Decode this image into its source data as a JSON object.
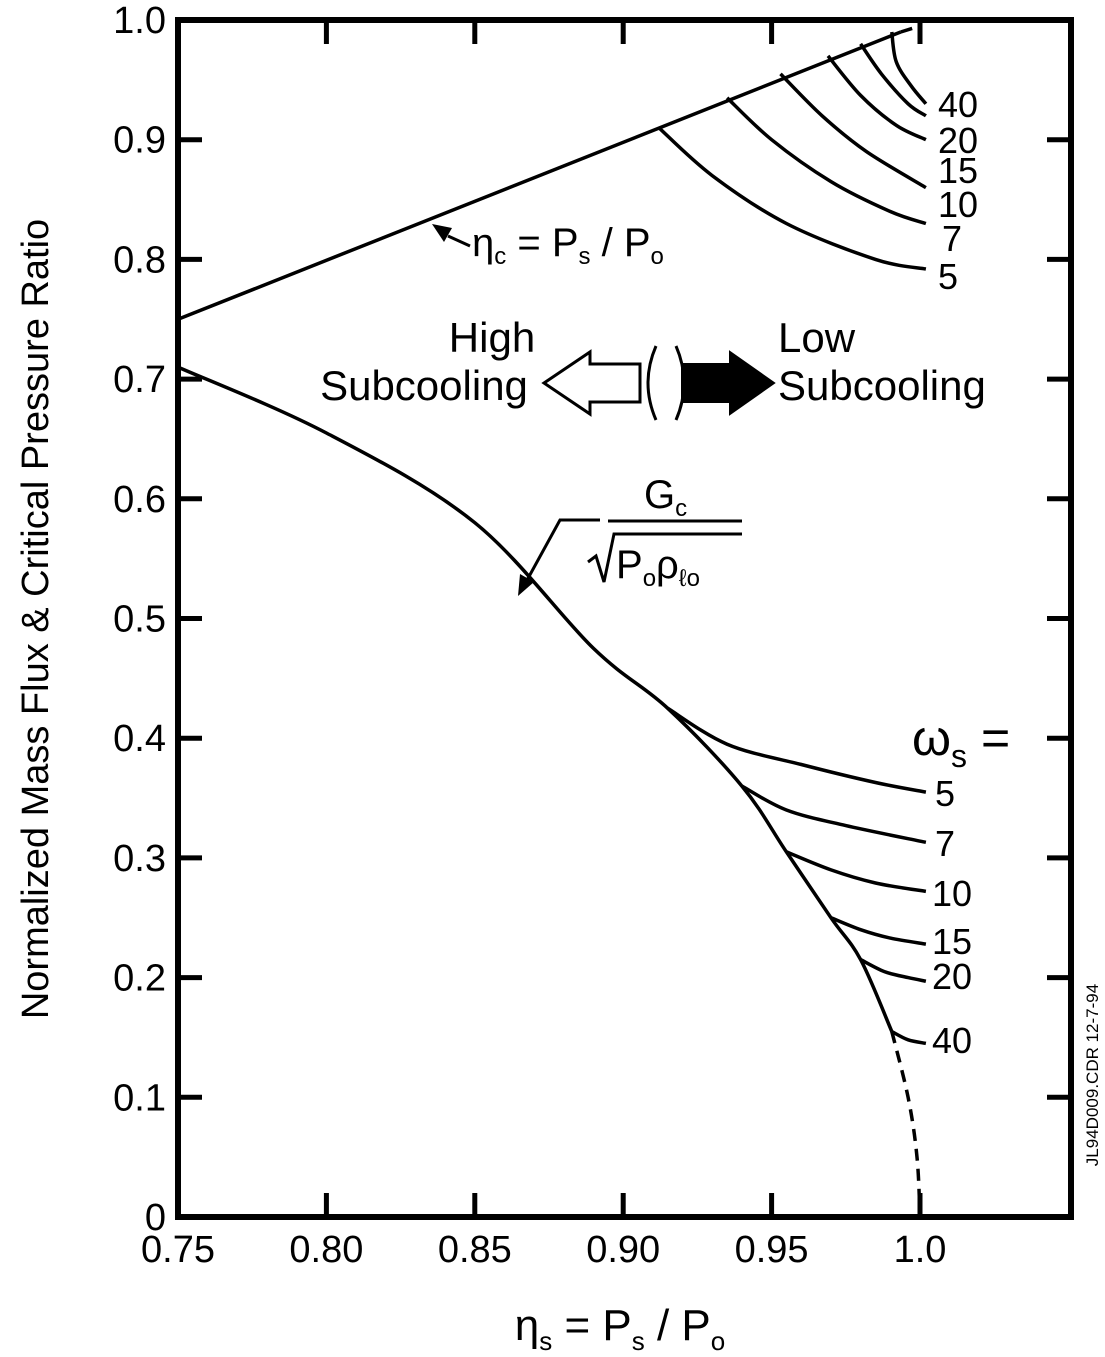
{
  "chart_data": {
    "type": "line",
    "xlabel": {
      "base": "η",
      "sub": "s",
      "rest": " = P",
      "sub2": "s",
      "rest2": " / P",
      "sub3": "o"
    },
    "ylabel": "Normalized Mass Flux & Critical Pressure Ratio",
    "xlim": [
      0.75,
      1.0
    ],
    "ylim": [
      0,
      1.0
    ],
    "x_ticks": [
      {
        "v": 0.75,
        "label": "0.75"
      },
      {
        "v": 0.8,
        "label": "0.80"
      },
      {
        "v": 0.85,
        "label": "0.85"
      },
      {
        "v": 0.9,
        "label": "0.90"
      },
      {
        "v": 0.95,
        "label": "0.95"
      },
      {
        "v": 1.0,
        "label": "1.0"
      }
    ],
    "y_ticks": [
      {
        "v": 0,
        "label": "0"
      },
      {
        "v": 0.1,
        "label": "0.1"
      },
      {
        "v": 0.2,
        "label": "0.2"
      },
      {
        "v": 0.3,
        "label": "0.3"
      },
      {
        "v": 0.4,
        "label": "0.4"
      },
      {
        "v": 0.5,
        "label": "0.5"
      },
      {
        "v": 0.6,
        "label": "0.6"
      },
      {
        "v": 0.7,
        "label": "0.7"
      },
      {
        "v": 0.8,
        "label": "0.8"
      },
      {
        "v": 0.9,
        "label": "0.9"
      },
      {
        "v": 1.0,
        "label": "1.0"
      }
    ],
    "grid": false,
    "series": [
      {
        "id": "eta_c_line",
        "style": "solid",
        "points": [
          [
            0.75,
            0.75
          ],
          [
            0.9935,
            0.99
          ]
        ]
      },
      {
        "id": "eta_c_line_dashed",
        "style": "dashed",
        "points": [
          [
            0.9935,
            0.99
          ],
          [
            1.0,
            0.995
          ]
        ]
      },
      {
        "id": "mass_flux_envelope",
        "style": "solid",
        "points": [
          [
            0.75,
            0.71
          ],
          [
            0.8,
            0.655
          ],
          [
            0.85,
            0.58
          ],
          [
            0.89,
            0.475
          ],
          [
            0.915,
            0.425
          ],
          [
            0.94,
            0.36
          ],
          [
            0.955,
            0.305
          ],
          [
            0.97,
            0.25
          ],
          [
            0.98,
            0.215
          ],
          [
            0.9905,
            0.155
          ]
        ]
      },
      {
        "id": "mass_flux_envelope_dashed",
        "style": "dashed",
        "points": [
          [
            0.9905,
            0.155
          ],
          [
            0.996,
            0.1
          ],
          [
            0.999,
            0.05
          ],
          [
            1.0,
            0.0
          ]
        ]
      },
      {
        "id": "upper_w5",
        "style": "solid",
        "points": [
          [
            0.912,
            0.91
          ],
          [
            0.93,
            0.87
          ],
          [
            0.955,
            0.83
          ],
          [
            0.985,
            0.8
          ],
          [
            1.002,
            0.792
          ]
        ]
      },
      {
        "id": "upper_w7",
        "style": "solid",
        "points": [
          [
            0.935,
            0.935
          ],
          [
            0.95,
            0.9
          ],
          [
            0.97,
            0.865
          ],
          [
            0.99,
            0.84
          ],
          [
            1.002,
            0.83
          ]
        ]
      },
      {
        "id": "upper_w10",
        "style": "solid",
        "points": [
          [
            0.953,
            0.955
          ],
          [
            0.967,
            0.92
          ],
          [
            0.982,
            0.89
          ],
          [
            1.002,
            0.86
          ]
        ]
      },
      {
        "id": "upper_w15",
        "style": "solid",
        "points": [
          [
            0.969,
            0.97
          ],
          [
            0.98,
            0.937
          ],
          [
            0.992,
            0.912
          ],
          [
            1.002,
            0.9
          ]
        ]
      },
      {
        "id": "upper_w20",
        "style": "solid",
        "points": [
          [
            0.98,
            0.98
          ],
          [
            0.987,
            0.955
          ],
          [
            0.996,
            0.93
          ],
          [
            1.002,
            0.92
          ]
        ]
      },
      {
        "id": "upper_w40",
        "style": "solid",
        "points": [
          [
            0.9905,
            0.99
          ],
          [
            0.992,
            0.965
          ],
          [
            0.997,
            0.945
          ],
          [
            1.002,
            0.93
          ]
        ]
      },
      {
        "id": "lower_w5",
        "style": "solid",
        "points": [
          [
            0.915,
            0.425
          ],
          [
            0.935,
            0.395
          ],
          [
            0.96,
            0.378
          ],
          [
            0.985,
            0.363
          ],
          [
            1.002,
            0.355
          ]
        ]
      },
      {
        "id": "lower_w7",
        "style": "solid",
        "points": [
          [
            0.94,
            0.36
          ],
          [
            0.955,
            0.34
          ],
          [
            0.975,
            0.327
          ],
          [
            1.002,
            0.313
          ]
        ]
      },
      {
        "id": "lower_w10",
        "style": "solid",
        "points": [
          [
            0.955,
            0.305
          ],
          [
            0.97,
            0.29
          ],
          [
            0.985,
            0.279
          ],
          [
            1.002,
            0.272
          ]
        ]
      },
      {
        "id": "lower_w15",
        "style": "solid",
        "points": [
          [
            0.97,
            0.25
          ],
          [
            0.98,
            0.24
          ],
          [
            0.99,
            0.233
          ],
          [
            1.002,
            0.228
          ]
        ]
      },
      {
        "id": "lower_w20",
        "style": "solid",
        "points": [
          [
            0.98,
            0.215
          ],
          [
            0.988,
            0.205
          ],
          [
            0.996,
            0.2
          ],
          [
            1.002,
            0.197
          ]
        ]
      },
      {
        "id": "lower_w40",
        "style": "solid",
        "points": [
          [
            0.9905,
            0.155
          ],
          [
            0.996,
            0.148
          ],
          [
            1.002,
            0.145
          ]
        ]
      }
    ],
    "upper_labels": [
      "40",
      "20",
      "15",
      "10",
      "7",
      "5"
    ],
    "lower_labels": [
      "5",
      "7",
      "10",
      "15",
      "20",
      "40"
    ],
    "annotations": {
      "eta_c": {
        "base": "η",
        "sub": "c",
        "rest": " = P",
        "sub2": "s",
        "rest2": " / P",
        "sub3": "o"
      },
      "gc_numerator": {
        "base": "G",
        "sub": "c"
      },
      "gc_denominator": {
        "base": "P",
        "sub": "o",
        "base2": "ρ",
        "sub2": "ℓo"
      },
      "high": "High",
      "high_sub": "Subcooling",
      "low": "Low",
      "low_sub": "Subcooling",
      "omega": {
        "base": "ω",
        "sub": "s",
        "rest": " ="
      }
    },
    "side_note": "JL94D009.CDR 12-7-94"
  }
}
